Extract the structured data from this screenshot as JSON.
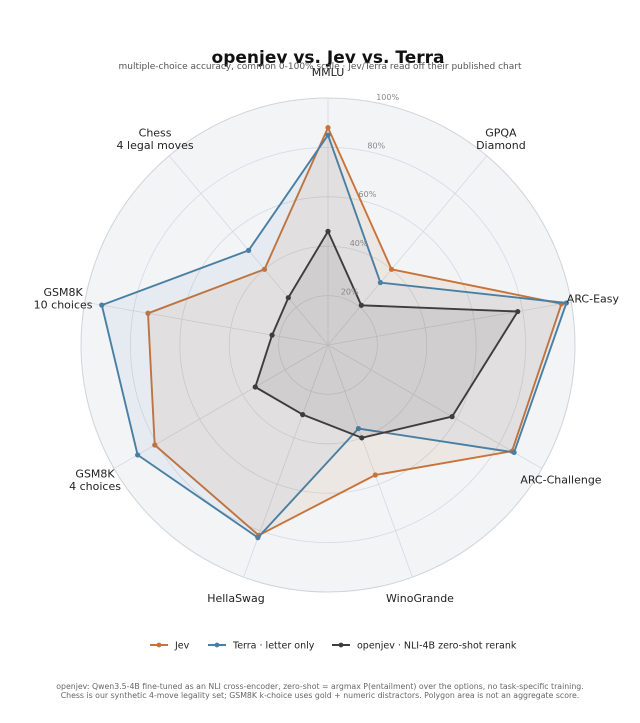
{
  "chart_data": {
    "type": "radar",
    "title": "openjev vs. Jev vs. Terra",
    "subtitle": "multiple-choice accuracy, common 0-100% scale · Jev/Terra read off their published chart",
    "axes": [
      [
        "MMLU"
      ],
      [
        "GPQA",
        "Diamond"
      ],
      [
        "ARC-Easy"
      ],
      [
        "ARC-Challenge"
      ],
      [
        "WinoGrande"
      ],
      [
        "HellaSwag"
      ],
      [
        "GSM8K",
        "4 choices"
      ],
      [
        "GSM8K",
        "10 choices"
      ],
      [
        "Chess",
        "4 legal moves"
      ]
    ],
    "rlim": [
      0,
      100
    ],
    "rticks": [
      20,
      40,
      60,
      80,
      100
    ],
    "rtick_labels": [
      "20%",
      "40%",
      "60%",
      "80%",
      "100%"
    ],
    "grid": true,
    "series": [
      {
        "name": "Jev",
        "color": "#c8733a",
        "fill_opacity": 0.1,
        "values": [
          88,
          40,
          96,
          86,
          56,
          82,
          81,
          74,
          40
        ]
      },
      {
        "name": "Terra · letter only",
        "color": "#4a7fa4",
        "fill_opacity": 0.07,
        "values": [
          85,
          33,
          98,
          87,
          36,
          83,
          89,
          93,
          50
        ]
      },
      {
        "name": "openjev · NLI-4B zero-shot rerank",
        "color": "#3d3d3d",
        "fill_opacity": 0.1,
        "values": [
          46,
          21,
          78,
          58,
          40,
          30,
          34,
          23,
          25
        ]
      }
    ],
    "legend_position": "bottom",
    "footnote": [
      "openjev: Qwen3.5-4B fine-tuned as an NLI cross-encoder, zero-shot = argmax P(entailment) over the options, no task-specific training.",
      "Chess is our synthetic 4-move legality set; GSM8K k-choice uses gold + numeric distractors. Polygon area is not an aggregate score."
    ]
  }
}
